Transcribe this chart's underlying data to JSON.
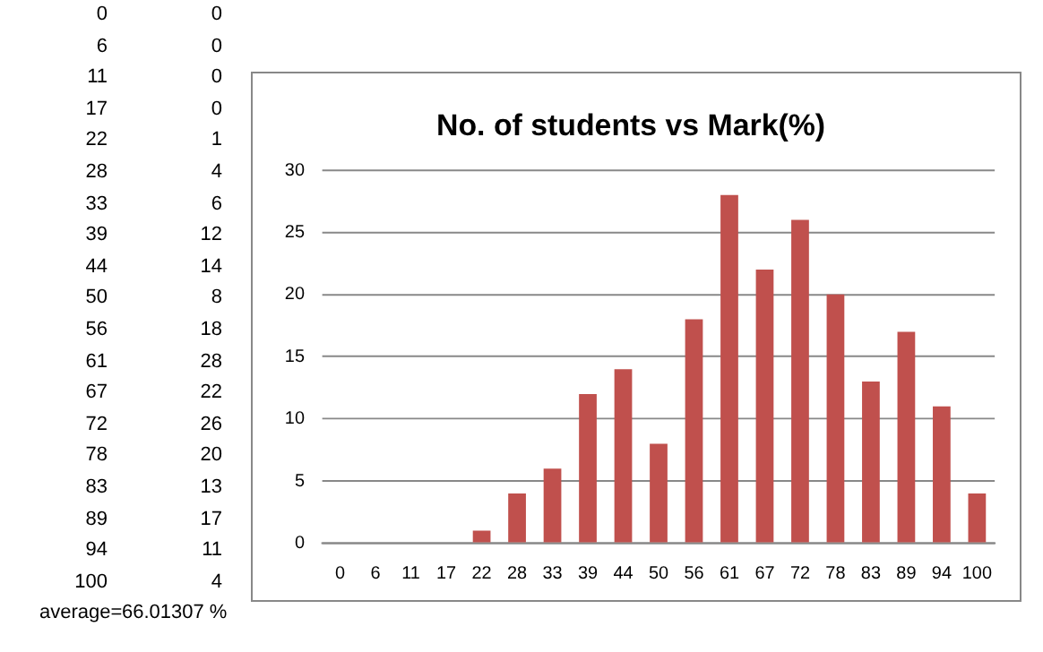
{
  "chart_data": [
    {
      "type": "other",
      "annotations": [
        "0",
        "0",
        "6",
        "0",
        "11",
        "0",
        "17",
        "0",
        "22",
        "1",
        "28",
        "4",
        "33",
        "6",
        "39",
        "12",
        "44",
        "14",
        "50",
        "8",
        "56",
        "18",
        "61",
        "28",
        "67",
        "22",
        "72",
        "26",
        "78",
        "20",
        "83",
        "13",
        "89",
        "17",
        "94",
        "11",
        "100",
        "4",
        "average=",
        "66.01307 %"
      ]
    },
    {
      "type": "bar",
      "title": "No. of students vs Mark(%)",
      "categories": [
        "0",
        "6",
        "11",
        "17",
        "22",
        "28",
        "33",
        "39",
        "44",
        "50",
        "56",
        "61",
        "67",
        "72",
        "78",
        "83",
        "89",
        "94",
        "100"
      ],
      "values": [
        0,
        0,
        0,
        0,
        1,
        4,
        6,
        12,
        14,
        8,
        18,
        28,
        22,
        26,
        20,
        13,
        17,
        11,
        4
      ],
      "color": "#c0504d",
      "ylim": [
        0,
        30
      ],
      "yticks": [
        0,
        5,
        10,
        15,
        20,
        25,
        30
      ],
      "grid": "y",
      "legend": false
    }
  ]
}
